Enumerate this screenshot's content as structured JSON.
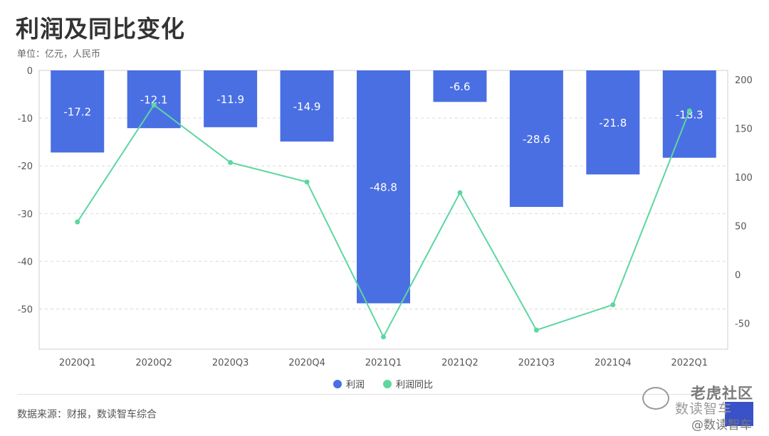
{
  "title": "利润及同比变化",
  "subtitle": "单位：亿元，人民币",
  "source": "数据来源：财报，数读智车综合",
  "watermark": {
    "line1": "老虎社区",
    "line2": "数读智车",
    "line3": "@数读智车"
  },
  "colors": {
    "bar": "#4a6fe3",
    "line": "#5dd6a0",
    "grid": "#d9d9d9",
    "axis_text": "#555555"
  },
  "chart_data": {
    "type": "bar+line",
    "categories": [
      "2020Q1",
      "2020Q2",
      "2020Q3",
      "2020Q4",
      "2021Q1",
      "2021Q2",
      "2021Q3",
      "2021Q4",
      "2022Q1"
    ],
    "series": [
      {
        "name": "利润",
        "type": "bar",
        "axis": "left",
        "values": [
          -17.2,
          -12.1,
          -11.9,
          -14.9,
          -48.8,
          -6.6,
          -28.6,
          -21.8,
          -18.3
        ],
        "labels": [
          "-17.2",
          "-12.1",
          "-11.9",
          "-14.9",
          "-48.8",
          "-6.6",
          "-28.6",
          "-21.8",
          "-18.3"
        ]
      },
      {
        "name": "利润同比",
        "type": "line",
        "axis": "right",
        "values": [
          54,
          174,
          115,
          95,
          -64,
          84,
          -57,
          -31,
          168
        ]
      }
    ],
    "y_left": {
      "min": -58,
      "max": 0,
      "ticks": [
        0,
        -10,
        -20,
        -30,
        -40,
        -50
      ]
    },
    "y_right": {
      "ticks": [
        200,
        150,
        100,
        50,
        0,
        -50
      ]
    },
    "grid": true,
    "legend": "bottom-center"
  }
}
